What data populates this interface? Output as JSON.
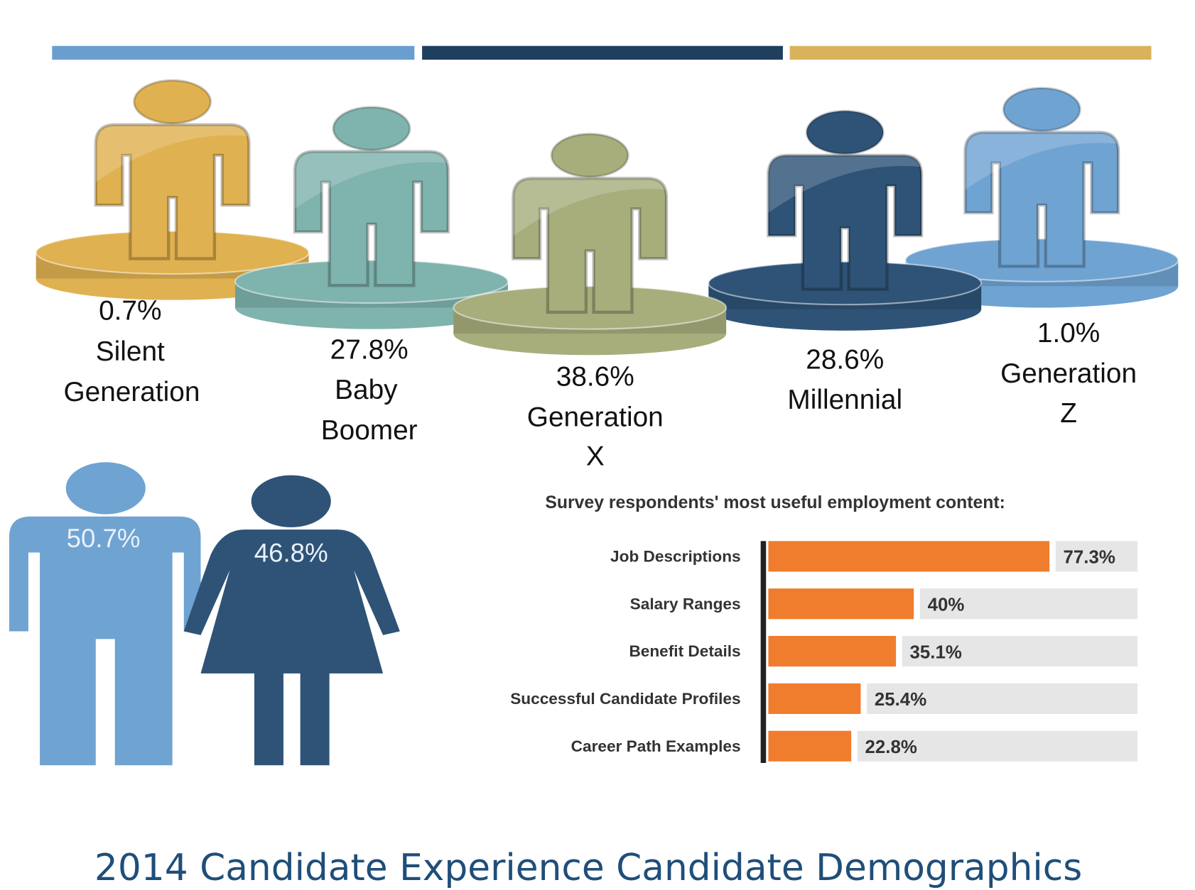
{
  "colors": {
    "top_bars": [
      "#6A9ECF",
      "#1F3F5F",
      "#D9B35C"
    ],
    "bar_fill": "#F07D2E",
    "bar_track": "#E6E6E6",
    "axis": "#222222",
    "title": "#1F4E79"
  },
  "generations": [
    {
      "percent": "0.7%",
      "lines": [
        "Silent",
        "Generation"
      ],
      "color": "#E0B150"
    },
    {
      "percent": "27.8%",
      "lines": [
        "Baby",
        "Boomer"
      ],
      "color": "#7FB3AE"
    },
    {
      "percent": "38.6%",
      "lines": [
        "Generation",
        "X"
      ],
      "color": "#A7AE7C"
    },
    {
      "percent": "28.6%",
      "lines": [
        "Millennial"
      ],
      "color": "#2E5377"
    },
    {
      "percent": "1.0%",
      "lines": [
        "Generation",
        "Z"
      ],
      "color": "#6FA3D2"
    }
  ],
  "gender": {
    "male": {
      "percent": "50.7%",
      "color": "#6FA3D2"
    },
    "female": {
      "percent": "46.8%",
      "color": "#2E5377"
    }
  },
  "chart_data": {
    "type": "bar",
    "orientation": "horizontal",
    "title": "Survey respondents' most useful employment content:",
    "categories": [
      "Job Descriptions",
      "Salary Ranges",
      "Benefit Details",
      "Successful Candidate Profiles",
      "Career Path Examples"
    ],
    "values": [
      77.3,
      40,
      35.1,
      25.4,
      22.8
    ],
    "value_labels": [
      "77.3%",
      "40%",
      "35.1%",
      "25.4%",
      "22.8%"
    ],
    "xlim": [
      0,
      100
    ],
    "grid": false
  },
  "page_title": "2014 Candidate Experience Candidate Demographics"
}
